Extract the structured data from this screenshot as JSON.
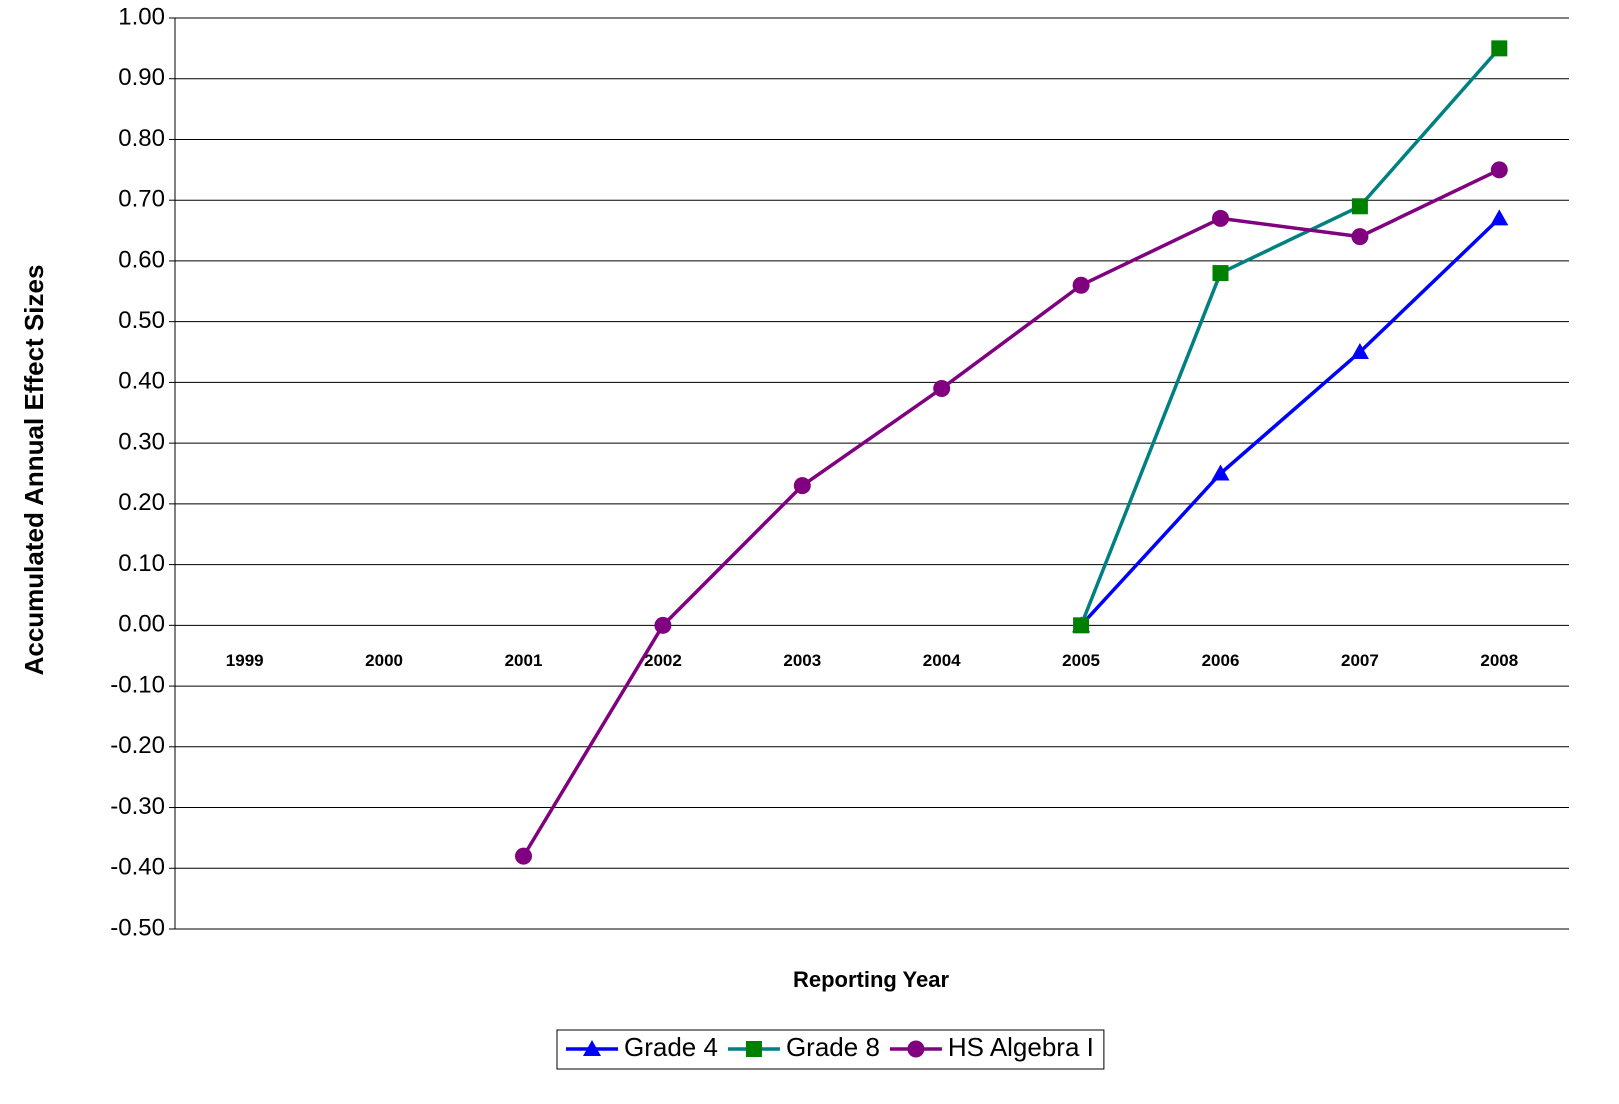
{
  "chart_data": {
    "type": "line",
    "y_label": "Accumulated Annual Effect Sizes",
    "x_label": "Reporting Year",
    "categories": [
      "1999",
      "2000",
      "2001",
      "2002",
      "2003",
      "2004",
      "2005",
      "2006",
      "2007",
      "2008"
    ],
    "series": [
      {
        "name": "Grade 4",
        "color": "#0000ff",
        "marker_color": "#0000ff",
        "marker": "triangle",
        "values": [
          null,
          null,
          null,
          null,
          null,
          null,
          0.0,
          0.25,
          0.45,
          0.67
        ]
      },
      {
        "name": "Grade 8",
        "color": "#008080",
        "marker_color": "#008000",
        "marker": "square",
        "values": [
          null,
          null,
          null,
          null,
          null,
          null,
          0.0,
          0.58,
          0.69,
          0.95
        ]
      },
      {
        "name": "HS Algebra I",
        "color": "#800080",
        "marker_color": "#800080",
        "marker": "circle",
        "values": [
          null,
          null,
          -0.38,
          0.0,
          0.23,
          0.39,
          0.56,
          0.67,
          0.64,
          0.75
        ]
      }
    ],
    "ylim": [
      -0.5,
      1.0
    ],
    "yticks": [
      {
        "value": 1.0,
        "label": "1.00"
      },
      {
        "value": 0.9,
        "label": "0.90"
      },
      {
        "value": 0.8,
        "label": "0.80"
      },
      {
        "value": 0.7,
        "label": "0.70"
      },
      {
        "value": 0.6,
        "label": "0.60"
      },
      {
        "value": 0.5,
        "label": "0.50"
      },
      {
        "value": 0.4,
        "label": "0.40"
      },
      {
        "value": 0.3,
        "label": "0.30"
      },
      {
        "value": 0.2,
        "label": "0.20"
      },
      {
        "value": 0.1,
        "label": "0.10"
      },
      {
        "value": 0.0,
        "label": "0.00"
      },
      {
        "value": -0.1,
        "label": "-0.10"
      },
      {
        "value": -0.2,
        "label": "-0.20"
      },
      {
        "value": -0.3,
        "label": "-0.30"
      },
      {
        "value": -0.4,
        "label": "-0.40"
      },
      {
        "value": -0.5,
        "label": "-0.50"
      }
    ],
    "grid": true,
    "legend": "bottom"
  }
}
